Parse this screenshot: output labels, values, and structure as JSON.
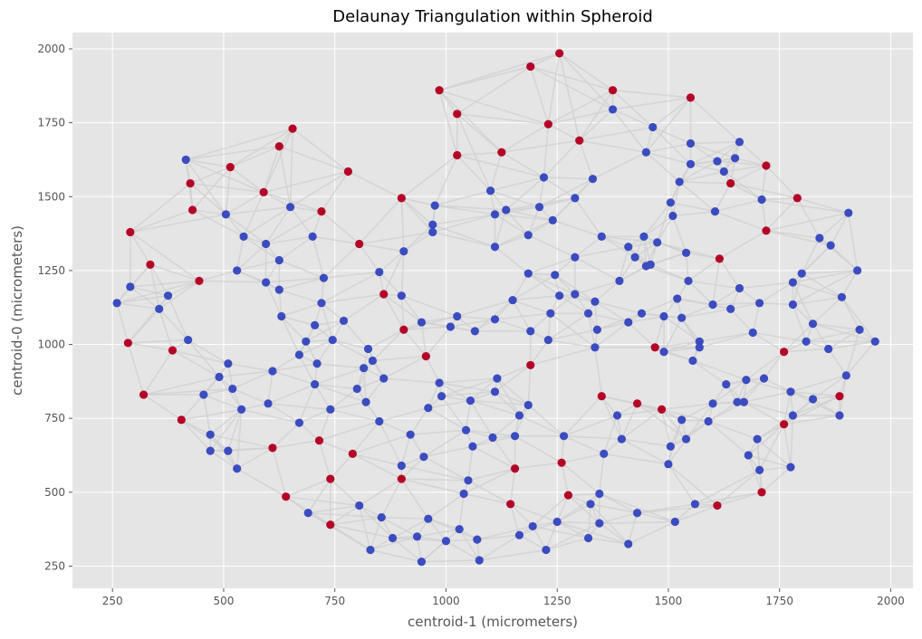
{
  "chart_data": {
    "type": "scatter",
    "title": "Delaunay Triangulation within Spheroid",
    "xlabel": "centroid-1 (micrometers)",
    "ylabel": "centroid-0 (micrometers)",
    "xlim": [
      160,
      2050
    ],
    "ylim": [
      2055,
      175
    ],
    "y_inverted": true,
    "x_ticks": [
      250,
      500,
      750,
      1000,
      1250,
      1500,
      1750,
      2000
    ],
    "y_ticks": [
      250,
      500,
      750,
      1000,
      1250,
      1500,
      1750,
      2000
    ],
    "grid": true,
    "background": "#e5e5e5",
    "edge_color": "#cfcfcf",
    "edge_k_neighbors": 6,
    "series": [
      {
        "color": "#3b4cc0",
        "points": [
          [
            260,
            1140
          ],
          [
            290,
            1195
          ],
          [
            355,
            1120
          ],
          [
            375,
            1165
          ],
          [
            415,
            1625
          ],
          [
            420,
            1015
          ],
          [
            455,
            830
          ],
          [
            470,
            640
          ],
          [
            470,
            695
          ],
          [
            490,
            890
          ],
          [
            505,
            1440
          ],
          [
            510,
            640
          ],
          [
            510,
            935
          ],
          [
            520,
            850
          ],
          [
            530,
            1250
          ],
          [
            530,
            580
          ],
          [
            540,
            780
          ],
          [
            545,
            1365
          ],
          [
            595,
            1340
          ],
          [
            600,
            800
          ],
          [
            595,
            1210
          ],
          [
            610,
            910
          ],
          [
            625,
            1285
          ],
          [
            625,
            1185
          ],
          [
            630,
            1095
          ],
          [
            650,
            1465
          ],
          [
            670,
            965
          ],
          [
            670,
            735
          ],
          [
            685,
            1010
          ],
          [
            690,
            430
          ],
          [
            700,
            1365
          ],
          [
            705,
            865
          ],
          [
            705,
            1065
          ],
          [
            710,
            935
          ],
          [
            720,
            1140
          ],
          [
            725,
            1225
          ],
          [
            740,
            780
          ],
          [
            745,
            1015
          ],
          [
            770,
            1080
          ],
          [
            800,
            850
          ],
          [
            805,
            455
          ],
          [
            815,
            920
          ],
          [
            820,
            805
          ],
          [
            825,
            985
          ],
          [
            830,
            305
          ],
          [
            835,
            945
          ],
          [
            850,
            1245
          ],
          [
            850,
            740
          ],
          [
            855,
            415
          ],
          [
            860,
            885
          ],
          [
            880,
            345
          ],
          [
            900,
            590
          ],
          [
            900,
            1165
          ],
          [
            905,
            1315
          ],
          [
            920,
            695
          ],
          [
            935,
            350
          ],
          [
            945,
            265
          ],
          [
            945,
            1075
          ],
          [
            950,
            620
          ],
          [
            960,
            785
          ],
          [
            960,
            410
          ],
          [
            970,
            1405
          ],
          [
            970,
            1380
          ],
          [
            975,
            1470
          ],
          [
            985,
            870
          ],
          [
            990,
            825
          ],
          [
            1000,
            335
          ],
          [
            1010,
            1060
          ],
          [
            1025,
            1095
          ],
          [
            1030,
            375
          ],
          [
            1040,
            495
          ],
          [
            1045,
            710
          ],
          [
            1050,
            540
          ],
          [
            1055,
            810
          ],
          [
            1060,
            655
          ],
          [
            1065,
            1045
          ],
          [
            1070,
            340
          ],
          [
            1075,
            270
          ],
          [
            1100,
            1520
          ],
          [
            1105,
            685
          ],
          [
            1110,
            1085
          ],
          [
            1110,
            1330
          ],
          [
            1110,
            1440
          ],
          [
            1110,
            840
          ],
          [
            1115,
            885
          ],
          [
            1135,
            1455
          ],
          [
            1150,
            1150
          ],
          [
            1155,
            690
          ],
          [
            1165,
            355
          ],
          [
            1165,
            760
          ],
          [
            1185,
            1240
          ],
          [
            1185,
            1370
          ],
          [
            1185,
            795
          ],
          [
            1190,
            1045
          ],
          [
            1195,
            385
          ],
          [
            1210,
            1465
          ],
          [
            1220,
            1565
          ],
          [
            1225,
            305
          ],
          [
            1230,
            1015
          ],
          [
            1235,
            1105
          ],
          [
            1240,
            1420
          ],
          [
            1245,
            1235
          ],
          [
            1250,
            400
          ],
          [
            1255,
            1165
          ],
          [
            1265,
            690
          ],
          [
            1290,
            1495
          ],
          [
            1290,
            1170
          ],
          [
            1290,
            1295
          ],
          [
            1320,
            1105
          ],
          [
            1320,
            345
          ],
          [
            1325,
            460
          ],
          [
            1330,
            1560
          ],
          [
            1335,
            990
          ],
          [
            1335,
            1145
          ],
          [
            1340,
            1050
          ],
          [
            1345,
            395
          ],
          [
            1345,
            495
          ],
          [
            1350,
            1365
          ],
          [
            1355,
            630
          ],
          [
            1375,
            1795
          ],
          [
            1385,
            760
          ],
          [
            1390,
            1215
          ],
          [
            1395,
            680
          ],
          [
            1410,
            1075
          ],
          [
            1410,
            325
          ],
          [
            1410,
            1330
          ],
          [
            1425,
            1295
          ],
          [
            1430,
            430
          ],
          [
            1440,
            1105
          ],
          [
            1445,
            1365
          ],
          [
            1450,
            1265
          ],
          [
            1450,
            1650
          ],
          [
            1460,
            1270
          ],
          [
            1465,
            1735
          ],
          [
            1475,
            1345
          ],
          [
            1490,
            1095
          ],
          [
            1490,
            975
          ],
          [
            1500,
            595
          ],
          [
            1505,
            1480
          ],
          [
            1505,
            655
          ],
          [
            1510,
            1435
          ],
          [
            1515,
            400
          ],
          [
            1520,
            1155
          ],
          [
            1525,
            1550
          ],
          [
            1530,
            1090
          ],
          [
            1530,
            745
          ],
          [
            1540,
            1310
          ],
          [
            1540,
            680
          ],
          [
            1545,
            1215
          ],
          [
            1550,
            1610
          ],
          [
            1550,
            1680
          ],
          [
            1555,
            945
          ],
          [
            1560,
            460
          ],
          [
            1570,
            1010
          ],
          [
            1570,
            990
          ],
          [
            1590,
            740
          ],
          [
            1600,
            800
          ],
          [
            1600,
            1135
          ],
          [
            1605,
            1450
          ],
          [
            1610,
            1620
          ],
          [
            1625,
            1585
          ],
          [
            1630,
            865
          ],
          [
            1640,
            1120
          ],
          [
            1660,
            1190
          ],
          [
            1650,
            1630
          ],
          [
            1655,
            805
          ],
          [
            1660,
            1685
          ],
          [
            1670,
            805
          ],
          [
            1675,
            880
          ],
          [
            1690,
            1040
          ],
          [
            1705,
            575
          ],
          [
            1705,
            1140
          ],
          [
            1710,
            1490
          ],
          [
            1715,
            885
          ],
          [
            1775,
            840
          ],
          [
            1780,
            1135
          ],
          [
            1780,
            1210
          ],
          [
            1800,
            1240
          ],
          [
            1810,
            1010
          ],
          [
            1825,
            815
          ],
          [
            1825,
            1070
          ],
          [
            1840,
            1360
          ],
          [
            1860,
            985
          ],
          [
            1865,
            1335
          ],
          [
            1885,
            760
          ],
          [
            1890,
            1160
          ],
          [
            1900,
            895
          ],
          [
            1905,
            1445
          ],
          [
            1925,
            1250
          ],
          [
            1930,
            1050
          ],
          [
            1965,
            1010
          ],
          [
            1680,
            625
          ],
          [
            1700,
            680
          ],
          [
            1775,
            585
          ],
          [
            1780,
            760
          ]
        ]
      },
      {
        "color": "#b40426",
        "points": [
          [
            285,
            1005
          ],
          [
            290,
            1380
          ],
          [
            320,
            830
          ],
          [
            335,
            1270
          ],
          [
            385,
            980
          ],
          [
            405,
            745
          ],
          [
            425,
            1545
          ],
          [
            430,
            1455
          ],
          [
            445,
            1215
          ],
          [
            515,
            1600
          ],
          [
            590,
            1515
          ],
          [
            610,
            650
          ],
          [
            625,
            1670
          ],
          [
            640,
            485
          ],
          [
            655,
            1730
          ],
          [
            715,
            675
          ],
          [
            720,
            1450
          ],
          [
            740,
            390
          ],
          [
            740,
            545
          ],
          [
            780,
            1585
          ],
          [
            790,
            630
          ],
          [
            805,
            1340
          ],
          [
            860,
            1170
          ],
          [
            900,
            1495
          ],
          [
            900,
            545
          ],
          [
            905,
            1050
          ],
          [
            955,
            960
          ],
          [
            985,
            1860
          ],
          [
            1025,
            1780
          ],
          [
            1025,
            1640
          ],
          [
            1125,
            1650
          ],
          [
            1145,
            460
          ],
          [
            1155,
            580
          ],
          [
            1190,
            930
          ],
          [
            1190,
            1940
          ],
          [
            1230,
            1745
          ],
          [
            1255,
            1985
          ],
          [
            1260,
            600
          ],
          [
            1275,
            490
          ],
          [
            1300,
            1690
          ],
          [
            1350,
            825
          ],
          [
            1375,
            1860
          ],
          [
            1430,
            800
          ],
          [
            1470,
            990
          ],
          [
            1485,
            780
          ],
          [
            1550,
            1835
          ],
          [
            1610,
            455
          ],
          [
            1615,
            1290
          ],
          [
            1640,
            1545
          ],
          [
            1710,
            500
          ],
          [
            1720,
            1605
          ],
          [
            1720,
            1385
          ],
          [
            1760,
            730
          ],
          [
            1760,
            975
          ],
          [
            1790,
            1495
          ],
          [
            1885,
            825
          ]
        ]
      }
    ]
  }
}
